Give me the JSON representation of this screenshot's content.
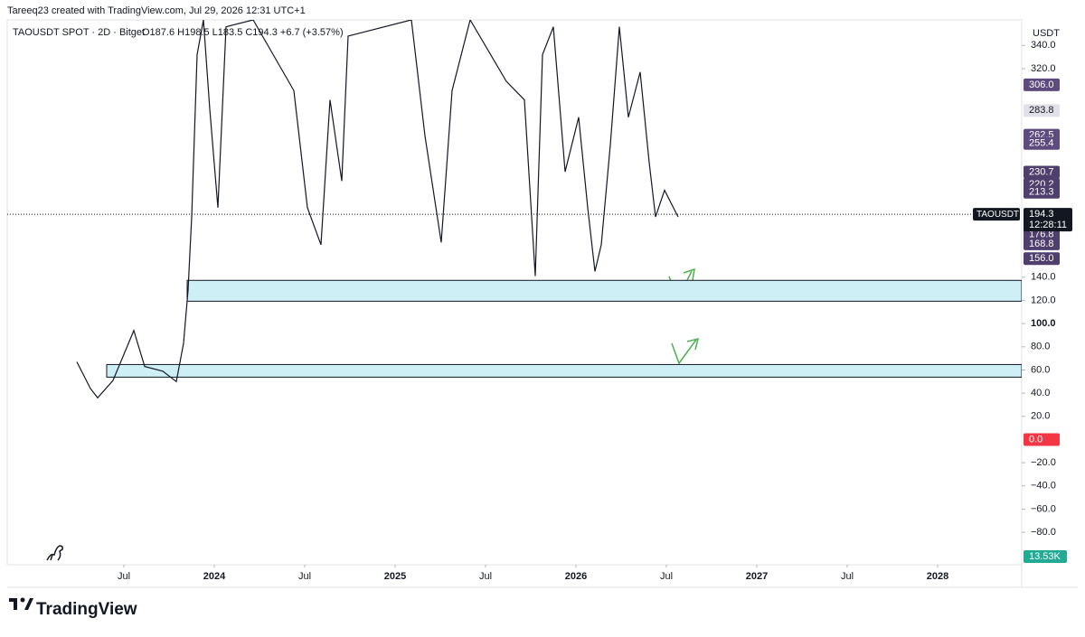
{
  "chart_data": {
    "type": "line",
    "attribution": "Tareeq23 created with TradingView.com, Jul 29, 2026 12:31 UTC+1",
    "title": "TAOUSDT SPOT · 2D · Bitget",
    "ohlc_text": "O187.6 H198.5 L183.5 C194.3 +6.7 (+3.57%)",
    "y_axis_label": "USDT",
    "brand": "TradingView",
    "symbol_label": "TAOUSDT",
    "countdown": "12:28:11",
    "volume_label": "13.53K",
    "xlim": [
      2022.855,
      2028.465
    ],
    "xticks": [
      {
        "value": 2023.5,
        "label": "Jul"
      },
      2024,
      {
        "value": 2024.5,
        "label": "Jul"
      },
      2025,
      {
        "value": 2025.5,
        "label": "Jul"
      },
      2026,
      {
        "value": 2026.5,
        "label": "Jul"
      },
      2027,
      {
        "value": 2027.5,
        "label": "Jul"
      },
      2028
    ],
    "ylim": [
      -108,
      362
    ],
    "yticks": [
      {
        "value": -80,
        "label": "−80.0"
      },
      {
        "value": -60,
        "label": "−60.0"
      },
      {
        "value": -40,
        "label": "−40.0"
      },
      {
        "value": -20,
        "label": "−20.0"
      },
      {
        "value": 20,
        "label": "20.0"
      },
      {
        "value": 40,
        "label": "40.0"
      },
      {
        "value": 60,
        "label": "60.0"
      },
      {
        "value": 80,
        "label": "80.0"
      },
      {
        "value": 100,
        "label": "100.0"
      },
      {
        "value": 120,
        "label": "120.0"
      },
      {
        "value": 140,
        "label": "140.0"
      },
      {
        "value": 320,
        "label": "320.0"
      },
      {
        "value": 340,
        "label": "340.0"
      }
    ],
    "series": [
      {
        "name": "TAOUSDT",
        "color": "#131722",
        "x": [
          2023.24,
          2023.315,
          2023.355,
          2023.44,
          2023.555,
          2023.615,
          2023.715,
          2023.79,
          2023.83,
          2023.855,
          2023.875,
          2023.905,
          2023.94,
          2023.975,
          2024.02,
          2024.065,
          2024.215,
          2024.44,
          2024.515,
          2024.59,
          2024.64,
          2024.705,
          2024.74,
          2025.09,
          2025.165,
          2025.255,
          2025.315,
          2025.415,
          2025.615,
          2025.715,
          2025.775,
          2025.815,
          2025.875,
          2025.94,
          2026.015,
          2026.065,
          2026.105,
          2026.14,
          2026.19,
          2026.24,
          2026.29,
          2026.355,
          2026.405,
          2026.44,
          2026.49,
          2026.565
        ],
        "values": [
          67,
          44,
          36,
          51,
          94,
          63,
          59,
          50,
          83,
          129,
          192,
          332,
          362,
          285,
          200,
          356,
          362,
          301,
          200,
          168,
          293,
          223,
          348,
          362,
          262,
          170,
          301,
          362,
          309,
          293,
          141,
          332,
          356,
          231,
          278,
          200,
          145,
          168,
          254,
          356,
          278,
          317,
          239,
          192,
          215,
          192
        ]
      }
    ],
    "zones": [
      {
        "x_start": 2023.85,
        "range": [
          119.3,
          137.3
        ]
      },
      {
        "x_start": 2023.405,
        "range": [
          53.8,
          64.7
        ]
      }
    ],
    "current_price": 194.3,
    "price_labels": [
      {
        "value": 306.0,
        "label": "306.0",
        "color": "#5d4b7e"
      },
      {
        "value": 283.8,
        "label": "283.8",
        "color": "#e1e0e8"
      },
      {
        "value": 262.5,
        "label": "262.5",
        "color": "#5d4b7e"
      },
      {
        "value": 255.4,
        "label": "255.4",
        "color": "#5d4b7e"
      },
      {
        "value": 230.7,
        "label": "230.7",
        "color": "#4e3f6d"
      },
      {
        "value": 220.2,
        "label": "220.2",
        "color": "#4e3f6d"
      },
      {
        "value": 213.3,
        "label": "213.3",
        "color": "#4e3f6d"
      },
      {
        "value": 176.8,
        "label": "176.8",
        "color": "#4e3f6d"
      },
      {
        "value": 168.8,
        "label": "168.8",
        "color": "#4e3f6d"
      },
      {
        "value": 156.0,
        "label": "156.0",
        "color": "#4e3f6d"
      },
      {
        "value": 0.0,
        "label": "0.0",
        "color": "#f23645"
      }
    ]
  }
}
